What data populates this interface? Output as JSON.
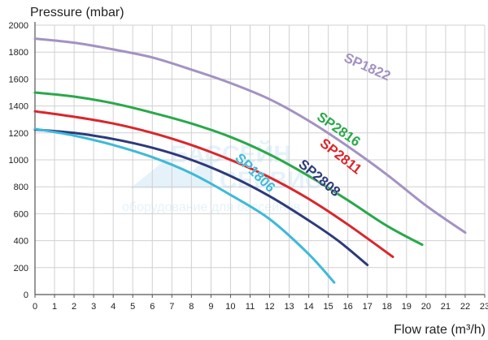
{
  "chart_data": {
    "type": "line",
    "ylabel": "Pressure (mbar)",
    "xlabel": "Flow rate (m³/h)",
    "xlim": [
      0,
      23
    ],
    "ylim": [
      0,
      2000
    ],
    "x_ticks": [
      0,
      1,
      2,
      3,
      4,
      5,
      6,
      7,
      8,
      9,
      10,
      11,
      12,
      13,
      14,
      15,
      16,
      17,
      18,
      19,
      20,
      21,
      22,
      23
    ],
    "y_ticks": [
      0,
      200,
      400,
      600,
      800,
      1000,
      1200,
      1400,
      1600,
      1800,
      2000
    ],
    "grid": true,
    "series": [
      {
        "name": "SP1822",
        "color": "#a392c2",
        "x": [
          0,
          2,
          4,
          6,
          8,
          10,
          12,
          14,
          16,
          18,
          20,
          22
        ],
        "y": [
          1900,
          1870,
          1820,
          1760,
          1670,
          1570,
          1450,
          1290,
          1100,
          890,
          660,
          460
        ]
      },
      {
        "name": "SP2816",
        "color": "#2aa84a",
        "x": [
          0,
          2,
          4,
          6,
          8,
          10,
          12,
          14,
          16,
          18,
          19.8
        ],
        "y": [
          1500,
          1470,
          1420,
          1350,
          1270,
          1170,
          1040,
          880,
          700,
          510,
          370
        ]
      },
      {
        "name": "SP2811",
        "color": "#d9262c",
        "x": [
          0,
          2,
          4,
          6,
          8,
          10,
          12,
          14,
          16,
          18.3
        ],
        "y": [
          1360,
          1320,
          1270,
          1200,
          1110,
          1000,
          870,
          710,
          520,
          280
        ]
      },
      {
        "name": "SP2808",
        "color": "#2d3a7a",
        "x": [
          0,
          2,
          4,
          6,
          8,
          10,
          12,
          14,
          15.5,
          17
        ],
        "y": [
          1225,
          1200,
          1155,
          1090,
          1000,
          880,
          730,
          550,
          400,
          220
        ]
      },
      {
        "name": "SP1806",
        "color": "#3fb9d8",
        "x": [
          0,
          2,
          4,
          6,
          8,
          10,
          12,
          14,
          15.3
        ],
        "y": [
          1230,
          1180,
          1110,
          1020,
          900,
          740,
          560,
          300,
          90
        ]
      }
    ],
    "labels": [
      {
        "series": "SP1822",
        "x": 16.9,
        "y": 1660,
        "angle": 24
      },
      {
        "series": "SP2816",
        "x": 15.4,
        "y": 1200,
        "angle": 35
      },
      {
        "series": "SP2811",
        "x": 15.5,
        "y": 1000,
        "angle": 38
      },
      {
        "series": "SP2808",
        "x": 14.4,
        "y": 840,
        "angle": 40
      },
      {
        "series": "SP1806",
        "x": 11.1,
        "y": 880,
        "angle": 44
      }
    ],
    "watermark": [
      "БАССЕЙН",
      "СЕРВИС",
      "оборудование для бассейнов"
    ]
  }
}
